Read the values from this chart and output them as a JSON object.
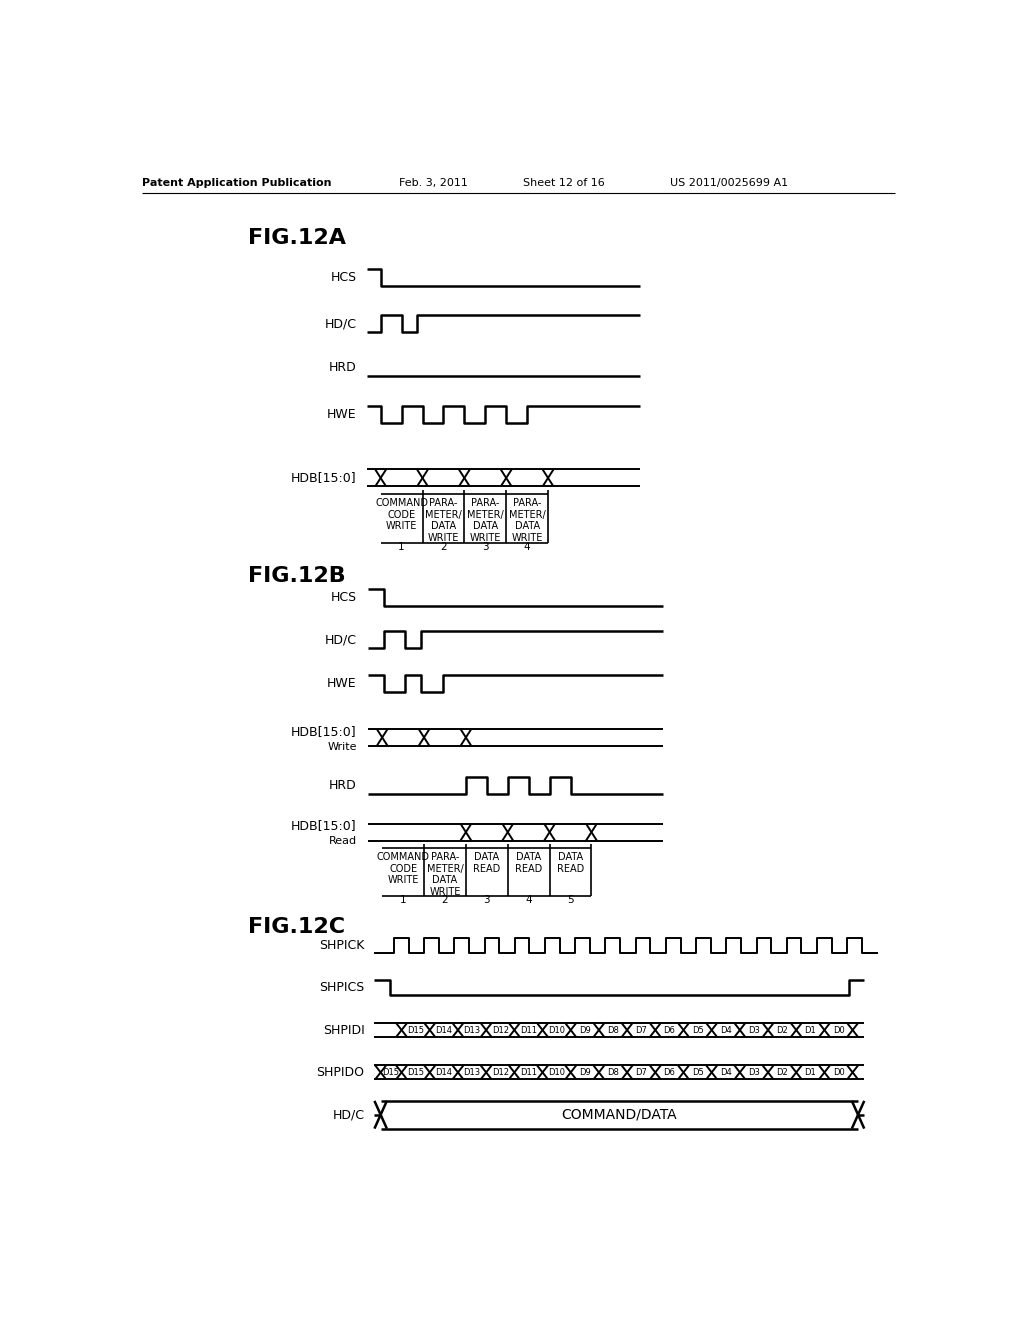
{
  "bg_color": "#ffffff",
  "fig_width": 10.24,
  "fig_height": 13.2,
  "header_text": "Patent Application Publication",
  "header_date": "Feb. 3, 2011",
  "header_sheet": "Sheet 12 of 16",
  "header_patent": "US 2011/0025699 A1",
  "fig12a_title": "FIG.12A",
  "fig12b_title": "FIG.12B",
  "fig12c_title": "FIG.12C",
  "labels_12a": [
    "COMMAND\nCODE\nWRITE",
    "PARA-\nMETER/\nDATA\nWRITE",
    "PARA-\nMETER/\nDATA\nWRITE",
    "PARA-\nMETER/\nDATA\nWRITE"
  ],
  "nums_12a": [
    "1",
    "2",
    "3",
    "4"
  ],
  "labels_12b": [
    "COMMAND\nCODE\nWRITE",
    "PARA-\nMETER/\nDATA\nWRITE",
    "DATA\nREAD",
    "DATA\nREAD",
    "DATA\nREAD"
  ],
  "nums_12b": [
    "1",
    "2",
    "3",
    "4",
    "5"
  ],
  "data_bits": [
    "D15",
    "D14",
    "D13",
    "D12",
    "D11",
    "D10",
    "D9",
    "D8",
    "D7",
    "D6",
    "D5",
    "D4",
    "D3",
    "D2",
    "D1",
    "D0"
  ]
}
